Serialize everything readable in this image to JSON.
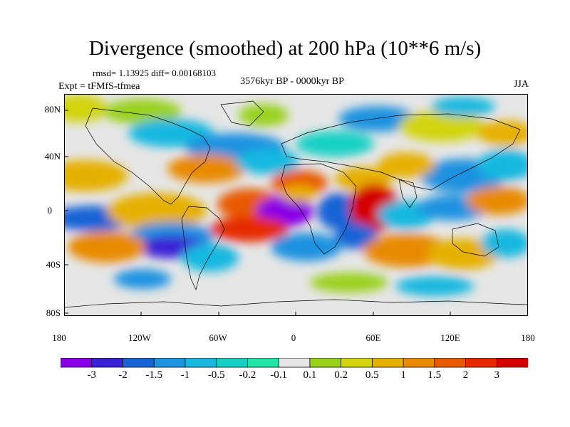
{
  "title": "Divergence (smoothed) at 200 hPa (10**6 m/s)",
  "stats": "rmsd= 1.13925 diff= 0.00168103",
  "experiment": "Expt = tFMfS-tfmea",
  "period": "3576kyr BP - 0000kyr BP",
  "season": "JJA",
  "lat_ticks": [
    "80N",
    "40N",
    "0",
    "40S",
    "80S"
  ],
  "lon_ticks": [
    "180",
    "120W",
    "60W",
    "0",
    "60E",
    "120E",
    "180"
  ],
  "colorbar": {
    "labels": [
      "-3",
      "-2",
      "-1.5",
      "-1",
      "-0.5",
      "-0.2",
      "-0.1",
      "0.1",
      "0.2",
      "0.5",
      "1",
      "1.5",
      "2",
      "3"
    ],
    "colors": [
      "#8a00e6",
      "#3a22d6",
      "#1763d6",
      "#1f92e0",
      "#19b8e0",
      "#17d0c4",
      "#1ee6a6",
      "#e6e6e6",
      "#9ad11a",
      "#d2d40e",
      "#e6b000",
      "#e88a00",
      "#e85a00",
      "#e62a00",
      "#d40000"
    ]
  }
}
